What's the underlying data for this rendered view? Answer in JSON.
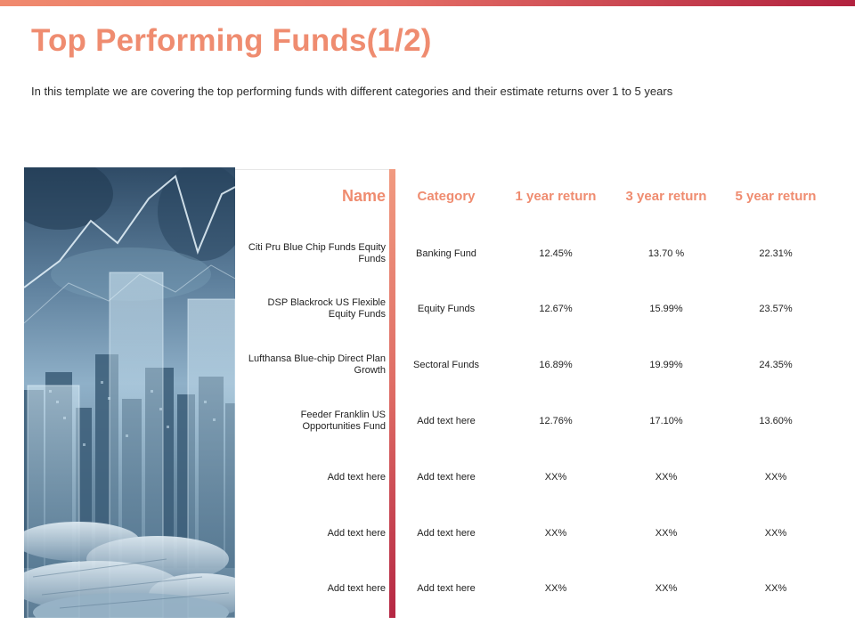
{
  "slide": {
    "title": "Top Performing Funds(1/2)",
    "subtitle": "In this template we are covering the top performing funds with different categories and their estimate returns over 1 to 5 years"
  },
  "table": {
    "headers": [
      "Name",
      "Category",
      "1 year return",
      "3 year return",
      "5 year return"
    ],
    "rows": [
      [
        "Citi Pru Blue Chip Funds Equity Funds",
        "Banking Fund",
        "12.45%",
        "13.70 %",
        "22.31%"
      ],
      [
        "DSP Blackrock US Flexible Equity Funds",
        "Equity Funds",
        "12.67%",
        "15.99%",
        "23.57%"
      ],
      [
        "Lufthansa Blue-chip Direct Plan Growth",
        "Sectoral Funds",
        "16.89%",
        "19.99%",
        "24.35%"
      ],
      [
        "Feeder Franklin US Opportunities Fund",
        "Add text here",
        "12.76%",
        "17.10%",
        "13.60%"
      ],
      [
        "Add text here",
        "Add text here",
        "XX%",
        "XX%",
        "XX%"
      ],
      [
        "Add text here",
        "Add text here",
        "XX%",
        "XX%",
        "XX%"
      ],
      [
        "Add text here",
        "Add text here",
        "XX%",
        "XX%",
        "XX%"
      ]
    ]
  },
  "colors": {
    "accent": "#ef8c70",
    "divider_dark": "#b52743"
  }
}
